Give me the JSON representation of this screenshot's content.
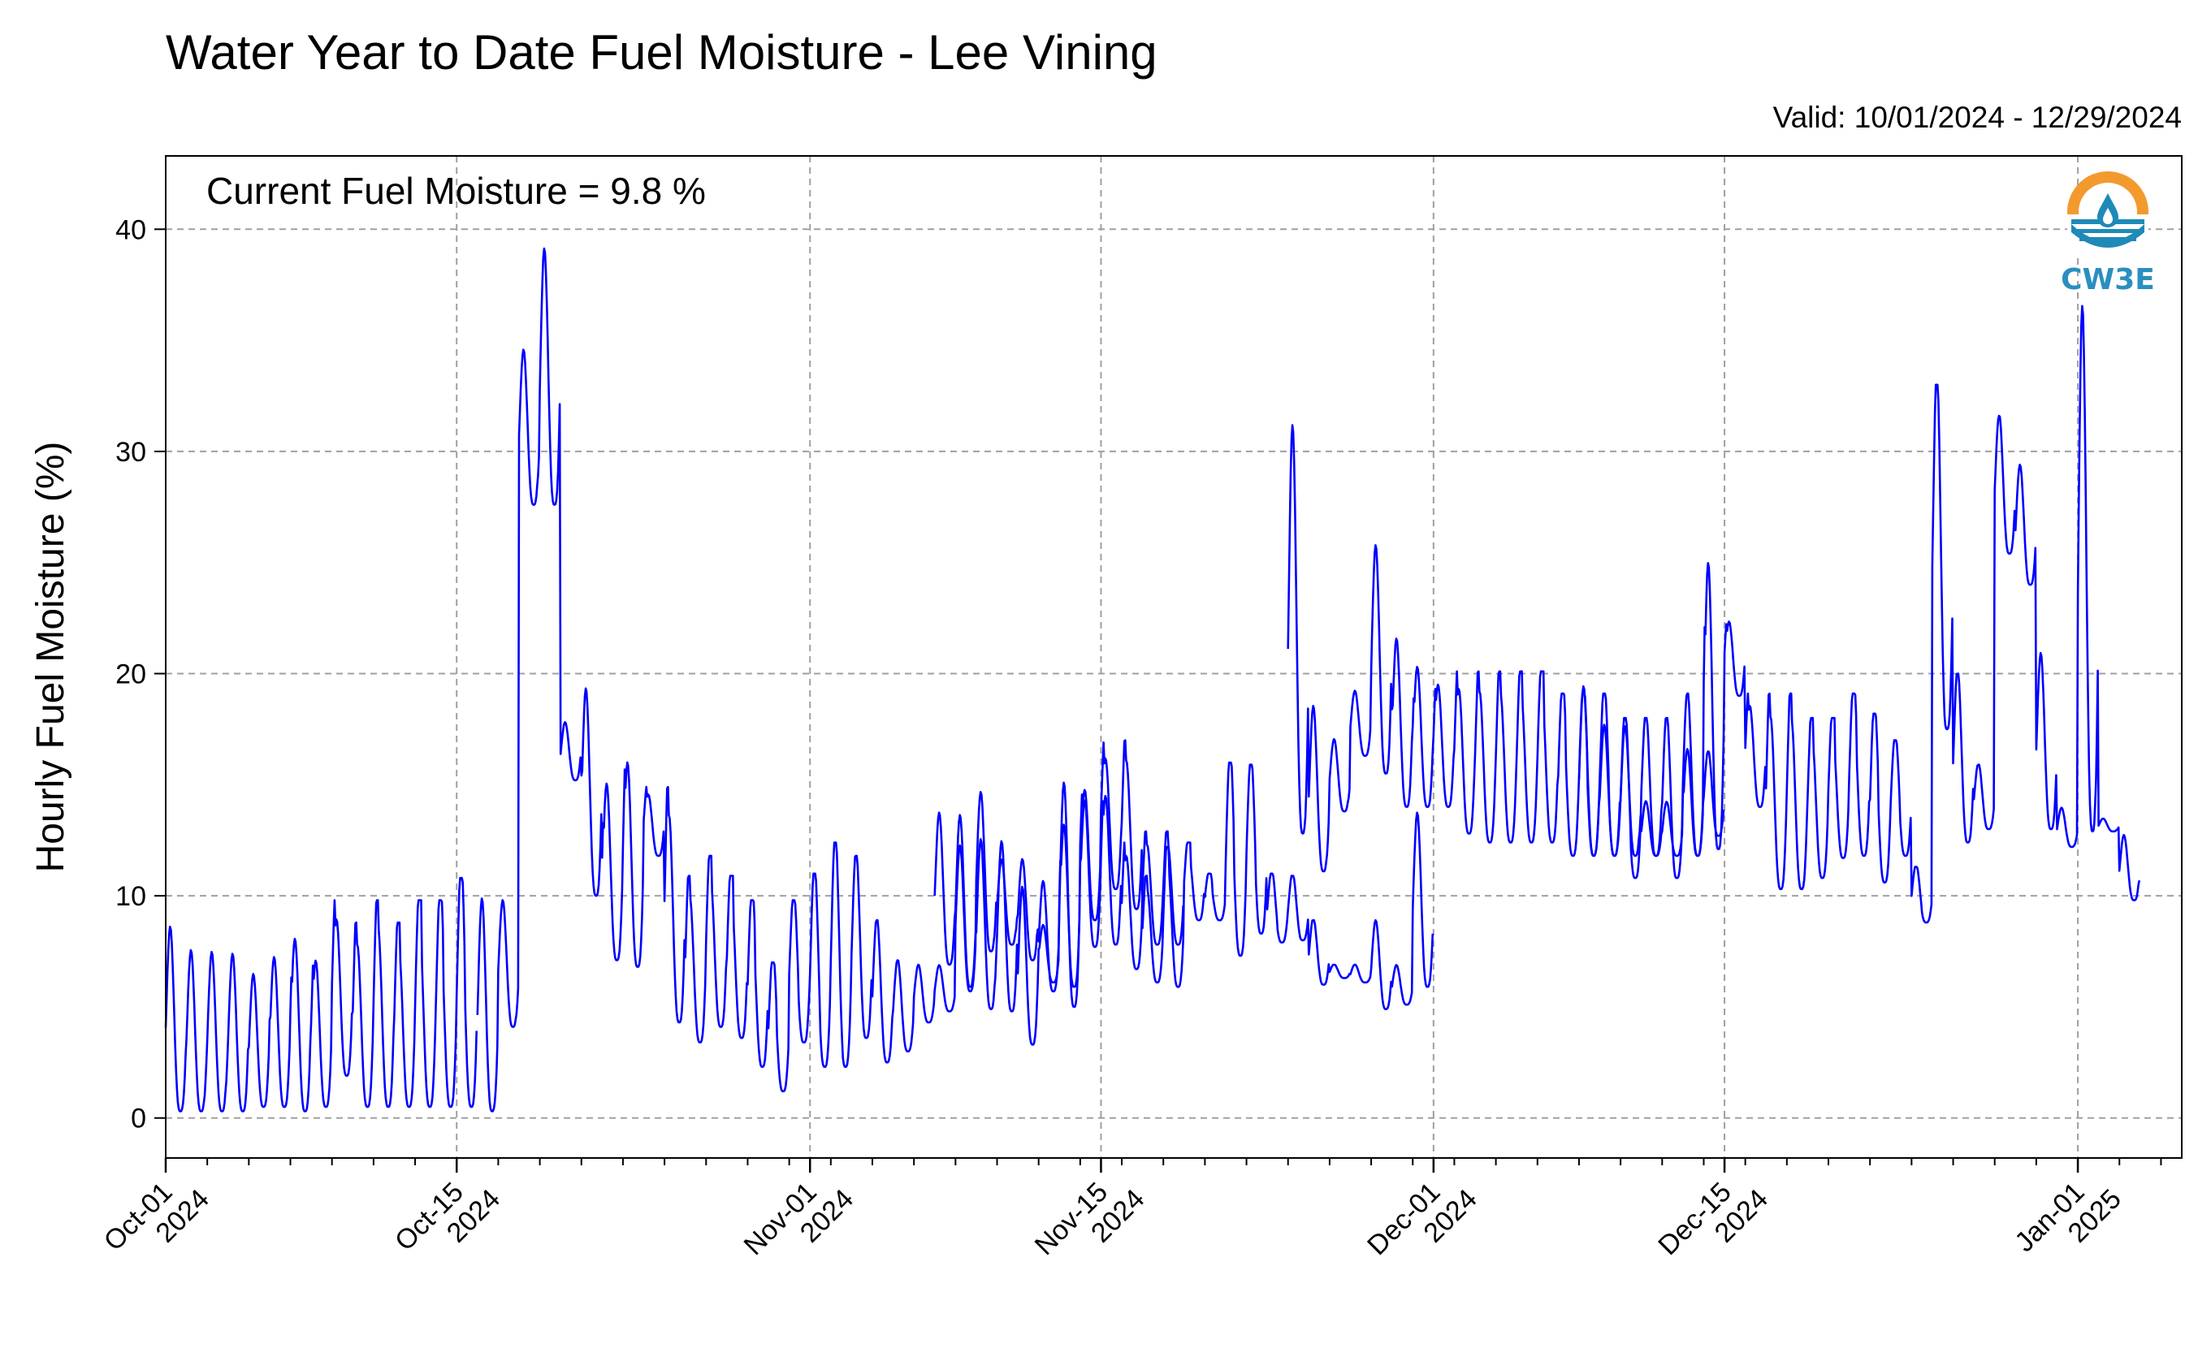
{
  "header": {
    "title": "Water Year to Date Fuel Moisture - Lee Vining",
    "valid": "Valid: 10/01/2024 - 12/29/2024"
  },
  "annotation": {
    "current": "Current Fuel Moisture = 9.8 %"
  },
  "logo": {
    "text": "CW3E",
    "colors": {
      "sun": "#f29a2e",
      "water": "#1e8ab8",
      "text": "#2a8fbf"
    }
  },
  "colors": {
    "line": "#0000ff",
    "grid": "#a0a0a0"
  },
  "chart_data": {
    "type": "line",
    "title": "Water Year to Date Fuel Moisture - Lee Vining",
    "ylabel": "Hourly Fuel Moisture (%)",
    "xlim": [
      "2024-10-01",
      "2025-01-06"
    ],
    "ylim": [
      -1.8,
      43.3
    ],
    "yticks": [
      0,
      10,
      20,
      30,
      40
    ],
    "xticks": [
      {
        "date": "2024-10-01",
        "line1": "Oct-01",
        "line2": "2024"
      },
      {
        "date": "2024-10-15",
        "line1": "Oct-15",
        "line2": "2024"
      },
      {
        "date": "2024-11-01",
        "line1": "Nov-01",
        "line2": "2024"
      },
      {
        "date": "2024-11-15",
        "line1": "Nov-15",
        "line2": "2024"
      },
      {
        "date": "2024-12-01",
        "line1": "Dec-01",
        "line2": "2024"
      },
      {
        "date": "2024-12-15",
        "line1": "Dec-15",
        "line2": "2024"
      },
      {
        "date": "2025-01-01",
        "line1": "Jan-01",
        "line2": "2025"
      }
    ],
    "grid": true,
    "series": [
      {
        "segments": [
          {
            "start": "2024-10-01",
            "daily": [
              [
                0.3,
                8.8
              ],
              [
                0.3,
                7.8
              ],
              [
                0.3,
                7.8
              ],
              [
                0.3,
                7.8
              ],
              [
                0.5,
                6.9
              ],
              [
                0.5,
                7.8
              ],
              [
                0.3,
                8.8
              ],
              [
                0.5,
                7.8
              ],
              [
                1.9,
                9.8
              ],
              [
                0.5,
                8.8
              ],
              [
                0.5,
                9.8
              ],
              [
                0.5,
                8.8
              ],
              [
                0.5,
                9.8
              ],
              [
                0.5,
                9.8
              ],
              [
                0.5,
                10.8
              ]
            ]
          },
          {
            "start": "2024-10-16",
            "daily": [
              [
                0.3,
                10.1
              ],
              [
                4.1,
                10.0
              ],
              [
                27.6,
                34.9
              ],
              [
                27.6,
                39.8
              ],
              [
                15.2,
                18.0
              ],
              [
                10.0,
                20.1
              ],
              [
                7.1,
                15.8
              ],
              [
                6.8,
                17.0
              ],
              [
                11.8,
                14.9
              ],
              [
                4.3,
                14.9
              ],
              [
                3.4,
                10.9
              ],
              [
                4.1,
                11.8
              ],
              [
                3.6,
                10.9
              ],
              [
                2.3,
                9.8
              ],
              [
                1.2,
                7.0
              ],
              [
                3.4,
                9.8
              ],
              [
                2.3,
                11.0
              ],
              [
                2.3,
                12.4
              ],
              [
                3.6,
                11.8
              ],
              [
                2.5,
                8.9
              ],
              [
                3.0,
                7.1
              ],
              [
                4.3,
                6.9
              ],
              [
                4.8,
                6.9
              ],
              [
                5.7,
                12.4
              ],
              [
                7.5,
                14.9
              ],
              [
                7.8,
                11.8
              ],
              [
                7.1,
                11.9
              ],
              [
                5.7,
                11.0
              ],
              [
                5.0,
                15.9
              ],
              [
                7.7,
                14.9
              ],
              [
                7.8,
                15.2
              ],
              [
                6.7,
                12.4
              ],
              [
                7.8,
                12.9
              ],
              [
                7.8,
                12.9
              ]
            ]
          },
          {
            "start": "2024-11-07",
            "daily": [
              [
                6.9,
                13.9
              ],
              [
                5.9,
                13.9
              ],
              [
                4.9,
                12.9
              ],
              [
                4.8,
                12.9
              ],
              [
                3.3,
                10.9
              ],
              [
                6.1,
                8.9
              ],
              [
                5.9,
                13.9
              ],
              [
                8.9,
                15.4
              ],
              [
                10.3,
                16.9
              ],
              [
                9.4,
                17.0
              ],
              [
                6.1,
                10.9
              ],
              [
                5.9,
                12.2
              ],
              [
                8.9,
                12.4
              ],
              [
                8.9,
                11.0
              ],
              [
                7.3,
                16.0
              ],
              [
                8.3,
                15.9
              ],
              [
                7.9,
                11.0
              ],
              [
                8.0,
                10.9
              ],
              [
                6.0,
                8.9
              ],
              [
                6.3,
                6.9
              ],
              [
                6.1,
                6.9
              ],
              [
                4.9,
                8.9
              ],
              [
                5.1,
                6.9
              ],
              [
                5.9,
                13.9
              ]
            ]
          },
          {
            "start": "2024-11-24",
            "daily": [
              [
                12.8,
                31.6
              ],
              [
                11.1,
                18.8
              ],
              [
                13.8,
                17.2
              ],
              [
                16.3,
                19.4
              ],
              [
                15.5,
                26.5
              ],
              [
                14.0,
                22.2
              ],
              [
                14.0,
                20.9
              ],
              [
                14.0,
                20.1
              ],
              [
                12.8,
                20.1
              ],
              [
                12.4,
                20.1
              ],
              [
                12.4,
                20.1
              ],
              [
                12.4,
                20.1
              ],
              [
                12.4,
                20.1
              ],
              [
                11.8,
                19.1
              ],
              [
                11.8,
                19.1
              ],
              [
                11.8,
                19.1
              ],
              [
                10.8,
                18.0
              ],
              [
                11.8,
                18.0
              ],
              [
                10.8,
                18.0
              ],
              [
                11.8,
                19.1
              ],
              [
                12.7,
                16.5
              ]
            ]
          },
          {
            "start": "2024-12-08",
            "daily": [
              [
                11.8,
                19.6
              ],
              [
                11.8,
                17.9
              ],
              [
                11.8,
                17.9
              ],
              [
                11.8,
                14.4
              ],
              [
                11.8,
                14.4
              ],
              [
                11.8,
                17.0
              ],
              [
                12.1,
                26.2
              ],
              [
                19.0,
                22.7
              ],
              [
                14.0,
                19.1
              ],
              [
                10.3,
                19.1
              ],
              [
                10.3,
                19.1
              ],
              [
                10.8,
                18.0
              ],
              [
                11.7,
                18.0
              ],
              [
                11.8,
                19.1
              ],
              [
                10.6,
                18.2
              ],
              [
                11.8,
                17.0
              ],
              [
                8.8,
                11.3
              ],
              [
                17.5,
                33.0
              ],
              [
                12.4,
                20.0
              ],
              [
                13.0,
                15.9
              ],
              [
                25.4,
                31.6
              ],
              [
                24.0,
                29.4
              ],
              [
                13.0,
                21.0
              ],
              [
                12.2,
                14.0
              ],
              [
                12.9,
                37.3
              ],
              [
                12.9,
                13.5
              ],
              [
                9.8,
                12.9
              ]
            ]
          }
        ]
      }
    ]
  }
}
